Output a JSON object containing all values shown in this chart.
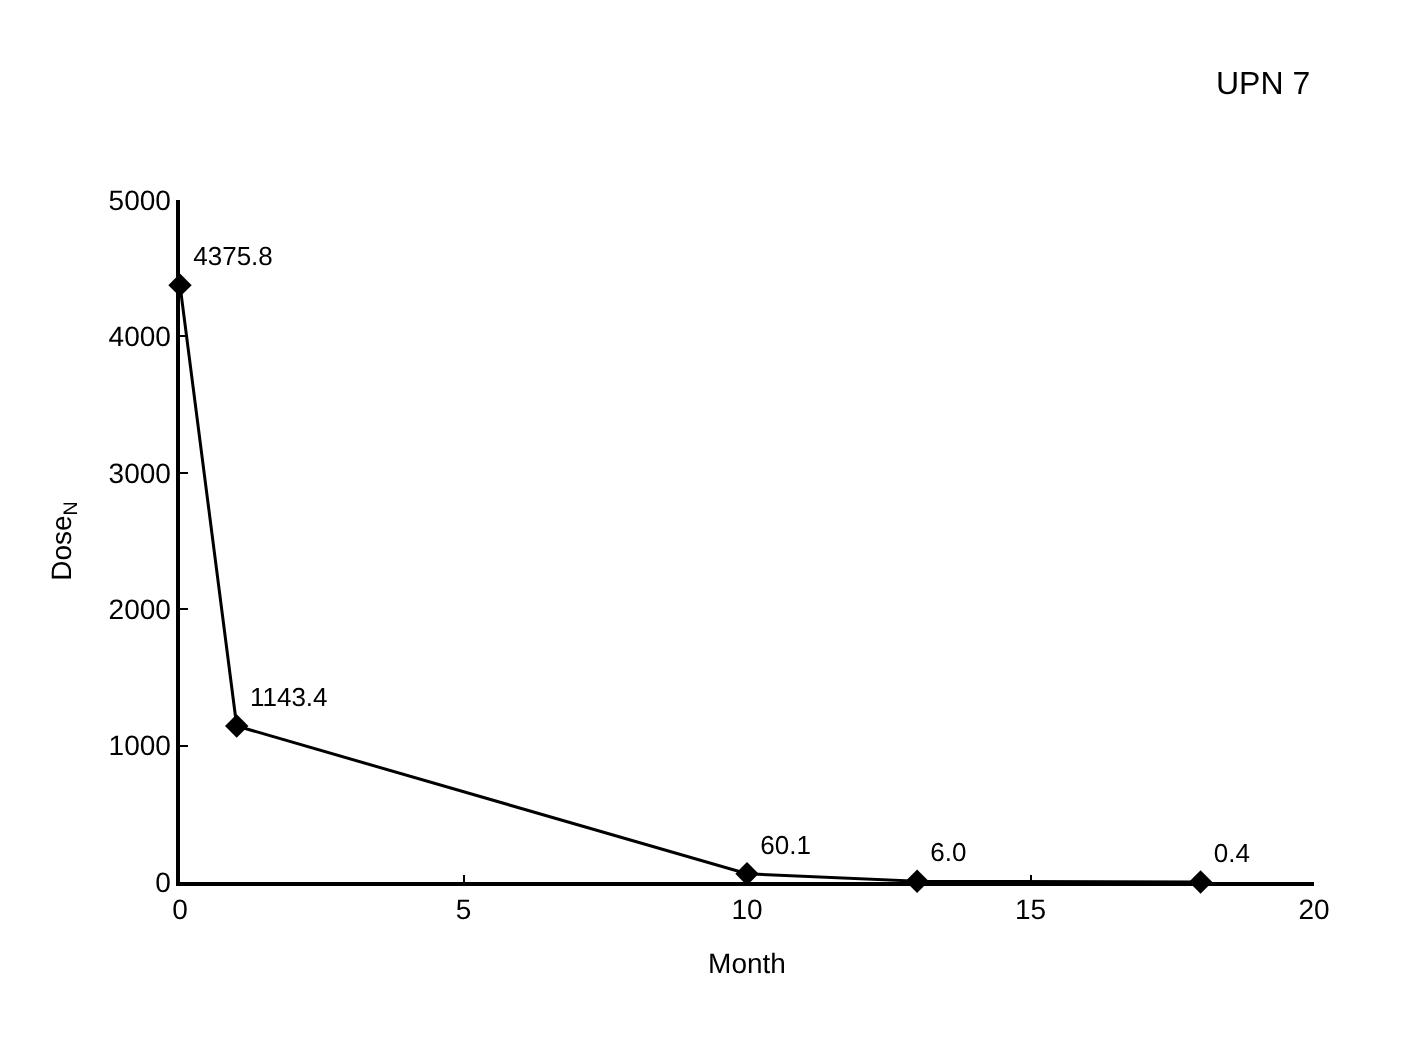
{
  "chart_data": {
    "type": "line",
    "xlabel": "Month",
    "ylabel": "Dose$_{N}$",
    "annotations": [
      "UPN 7"
    ],
    "x": [
      0,
      1,
      10,
      13,
      18
    ],
    "series": [
      {
        "color": "#000000",
        "values": [
          4375.8,
          1143.4,
          60.1,
          6.0,
          0.4
        ],
        "value_labels": [
          "4375.8",
          "1143.4",
          "60.1",
          "6.0",
          "0.4"
        ]
      }
    ],
    "xlim": [
      0,
      20
    ],
    "xticks": [
      0,
      5,
      10,
      15,
      20
    ],
    "ylim": [
      0,
      5000
    ],
    "yticks": [
      0,
      1000,
      2000,
      3000,
      4000,
      5000
    ],
    "legend": false,
    "marker": "diamond",
    "line_style": "solid"
  }
}
